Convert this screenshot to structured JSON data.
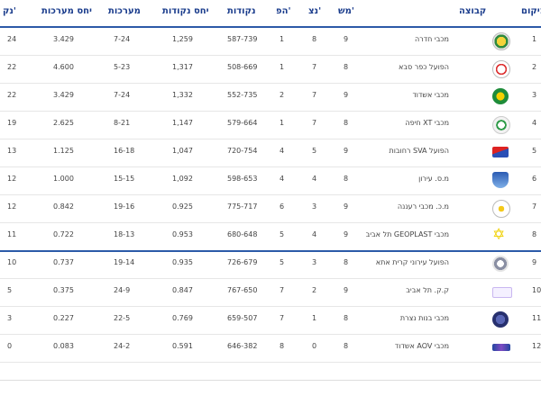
{
  "columns": {
    "rank": "מיקום",
    "team": "קבוצה",
    "played": "מש'",
    "won": "נצ'",
    "lost": "הפ'",
    "score": "נקודות",
    "points_ratio": "יחס נקודות",
    "games": "מערכות",
    "games_ratio": "יחס מערכות",
    "points": "נק'"
  },
  "rows": [
    {
      "rank": "1",
      "team": "מכבי חדרה",
      "played": "9",
      "won": "8",
      "lost": "1",
      "score": "587-739",
      "points_ratio": "1,259",
      "games": "7-24",
      "games_ratio": "3.429",
      "points": "24",
      "logo": "yellow-green-crest"
    },
    {
      "rank": "2",
      "team": "הפועל כפר סבא",
      "played": "8",
      "won": "7",
      "lost": "1",
      "score": "508-669",
      "points_ratio": "1,317",
      "games": "5-23",
      "games_ratio": "4.600",
      "points": "22",
      "logo": "red-white-crest"
    },
    {
      "rank": "3",
      "team": "מכבי אשדוד",
      "played": "9",
      "won": "7",
      "lost": "2",
      "score": "552-735",
      "points_ratio": "1,332",
      "games": "7-24",
      "games_ratio": "3.429",
      "points": "22",
      "logo": "green-yellow-round"
    },
    {
      "rank": "4",
      "team": "מכבי XT חיפה",
      "played": "8",
      "won": "7",
      "lost": "1",
      "score": "579-664",
      "points_ratio": "1,147",
      "games": "8-21",
      "games_ratio": "2.625",
      "points": "19",
      "logo": "green-white-round"
    },
    {
      "rank": "5",
      "team": "הפועל SVA רחובות",
      "played": "9",
      "won": "5",
      "lost": "4",
      "score": "720-754",
      "points_ratio": "1,047",
      "games": "16-18",
      "games_ratio": "1.125",
      "points": "13",
      "logo": "red-blue-flag"
    },
    {
      "rank": "6",
      "team": "מ.ס. עירון",
      "played": "8",
      "won": "4",
      "lost": "4",
      "score": "598-653",
      "points_ratio": "1,092",
      "games": "15-15",
      "games_ratio": "1.000",
      "points": "12",
      "logo": "blue-shield"
    },
    {
      "rank": "7",
      "team": "מ.כ. מכבי רעננה",
      "played": "9",
      "won": "3",
      "lost": "6",
      "score": "775-717",
      "points_ratio": "0.925",
      "games": "19-16",
      "games_ratio": "0.842",
      "points": "12",
      "logo": "white-yellow-round"
    },
    {
      "rank": "8",
      "team": "מכבי GEOPLAST תל אביב",
      "played": "9",
      "won": "4",
      "lost": "5",
      "score": "680-648",
      "points_ratio": "0.953",
      "games": "18-13",
      "games_ratio": "0.722",
      "points": "11",
      "logo": "yellow-star"
    },
    {
      "rank": "9",
      "team": "הפועל עירוני קרית אתא",
      "played": "8",
      "won": "3",
      "lost": "5",
      "score": "726-679",
      "points_ratio": "0.935",
      "games": "19-14",
      "games_ratio": "0.737",
      "points": "10",
      "logo": "grey-round"
    },
    {
      "rank": "10",
      "team": "ק.ק. תל אביב",
      "played": "9",
      "won": "2",
      "lost": "7",
      "score": "767-650",
      "points_ratio": "0.847",
      "games": "24-9",
      "games_ratio": "0.375",
      "points": "5",
      "logo": "text-badge"
    },
    {
      "rank": "11",
      "team": "מכבי בנות נצרת",
      "played": "8",
      "won": "1",
      "lost": "7",
      "score": "659-507",
      "points_ratio": "0.769",
      "games": "22-5",
      "games_ratio": "0.227",
      "points": "3",
      "logo": "navy-round"
    },
    {
      "rank": "12",
      "team": "מכבי AOV אשדוד",
      "played": "8",
      "won": "0",
      "lost": "8",
      "score": "646-382",
      "points_ratio": "0.591",
      "games": "24-2",
      "games_ratio": "0.083",
      "points": "0",
      "logo": "blue-wings"
    }
  ],
  "colors": {
    "header_text": "#1a3c8c",
    "divider": "#2c5aa8"
  }
}
